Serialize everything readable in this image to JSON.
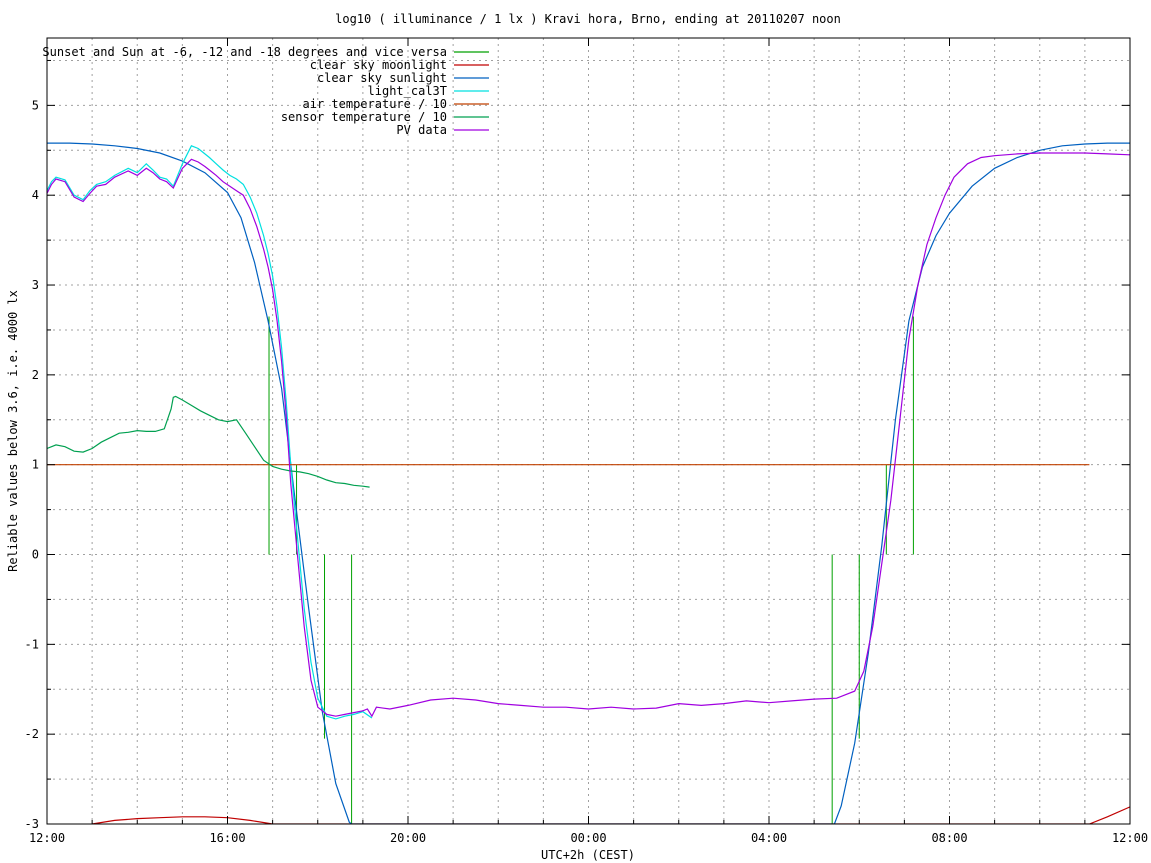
{
  "chart_data": {
    "type": "line",
    "title": "log10 ( illuminance / 1 lx ) Kravi hora, Brno, ending at 20110207 noon",
    "xlabel": "UTC+2h (CEST)",
    "ylabel": "Reliable values below 3.6, i.e. 4000 lx",
    "xlim": [
      0,
      24
    ],
    "ylim": [
      -3,
      5.75
    ],
    "grid": true,
    "legend_position": "top-left",
    "x_ticks": [
      {
        "value": 0,
        "label": "12:00"
      },
      {
        "value": 4,
        "label": "16:00"
      },
      {
        "value": 8,
        "label": "20:00"
      },
      {
        "value": 12,
        "label": "00:00"
      },
      {
        "value": 16,
        "label": "04:00"
      },
      {
        "value": 20,
        "label": "08:00"
      },
      {
        "value": 24,
        "label": "12:00"
      }
    ],
    "y_ticks": [
      {
        "value": -3,
        "label": "-3"
      },
      {
        "value": -2,
        "label": "-2"
      },
      {
        "value": -1,
        "label": "-1"
      },
      {
        "value": 0,
        "label": "0"
      },
      {
        "value": 1,
        "label": "1"
      },
      {
        "value": 2,
        "label": "2"
      },
      {
        "value": 3,
        "label": "3"
      },
      {
        "value": 4,
        "label": "4"
      },
      {
        "value": 5,
        "label": "5"
      }
    ],
    "series": [
      {
        "name": "Sunset and Sun at -6, -12 and -18 degrees and vice versa",
        "color": "#00a000",
        "kind": "impulses",
        "impulses": [
          {
            "x": 4.92,
            "y": 2.65
          },
          {
            "x": 5.53,
            "y": 1.0
          },
          {
            "x": 6.15,
            "y": -2.05
          },
          {
            "x": 6.75,
            "y": -3.0
          },
          {
            "x": 17.4,
            "y": -3.0
          },
          {
            "x": 18.0,
            "y": -2.05
          },
          {
            "x": 18.6,
            "y": 1.0
          },
          {
            "x": 19.2,
            "y": 2.65
          }
        ]
      },
      {
        "name": "clear sky moonlight",
        "color": "#c00000",
        "kind": "line",
        "x": [
          1.0,
          1.5,
          2.0,
          2.5,
          3.0,
          3.5,
          4.0,
          4.5,
          5.0,
          23.1,
          23.5,
          24.0
        ],
        "y": [
          -3.0,
          -2.96,
          -2.94,
          -2.93,
          -2.92,
          -2.92,
          -2.93,
          -2.96,
          -3.0,
          -3.0,
          -2.92,
          -2.81
        ]
      },
      {
        "name": "clear sky sunlight",
        "color": "#0060c0",
        "kind": "line",
        "x": [
          0,
          0.5,
          1.0,
          1.5,
          2.0,
          2.5,
          3.0,
          3.5,
          4.0,
          4.3,
          4.6,
          4.9,
          5.2,
          5.5,
          5.8,
          6.1,
          6.4,
          6.7,
          6.75,
          17.45,
          17.6,
          17.9,
          18.2,
          18.5,
          18.8,
          19.1,
          19.4,
          19.7,
          20.0,
          20.5,
          21.0,
          21.5,
          22.0,
          22.5,
          23.0,
          23.5,
          24.0
        ],
        "y": [
          4.58,
          4.58,
          4.57,
          4.55,
          4.52,
          4.47,
          4.38,
          4.25,
          4.03,
          3.75,
          3.25,
          2.6,
          1.85,
          0.6,
          -0.6,
          -1.75,
          -2.55,
          -2.98,
          -3.0,
          -3.0,
          -2.8,
          -2.1,
          -1.1,
          0.1,
          1.5,
          2.6,
          3.2,
          3.55,
          3.8,
          4.1,
          4.3,
          4.42,
          4.5,
          4.55,
          4.57,
          4.58,
          4.58
        ]
      },
      {
        "name": "light_cal3T",
        "color": "#00e0e0",
        "kind": "line",
        "x": [
          0,
          0.1,
          0.2,
          0.4,
          0.6,
          0.8,
          0.95,
          1.1,
          1.3,
          1.5,
          1.8,
          2.0,
          2.2,
          2.35,
          2.5,
          2.65,
          2.8,
          3.0,
          3.2,
          3.35,
          3.5,
          3.6,
          3.75,
          3.9,
          4.05,
          4.2,
          4.35,
          4.5,
          4.65,
          4.8,
          4.9,
          5.0,
          5.1,
          5.2,
          5.3,
          5.4,
          5.55,
          5.7,
          5.85,
          6.0,
          6.2,
          6.4,
          6.6,
          6.8,
          7.0,
          7.2
        ],
        "y": [
          4.05,
          4.15,
          4.2,
          4.17,
          4.0,
          3.95,
          4.05,
          4.12,
          4.15,
          4.22,
          4.3,
          4.25,
          4.35,
          4.28,
          4.2,
          4.18,
          4.1,
          4.35,
          4.55,
          4.52,
          4.46,
          4.42,
          4.35,
          4.28,
          4.22,
          4.18,
          4.12,
          3.98,
          3.8,
          3.55,
          3.35,
          3.1,
          2.75,
          2.3,
          1.7,
          1.0,
          0.2,
          -0.6,
          -1.2,
          -1.6,
          -1.8,
          -1.83,
          -1.8,
          -1.78,
          -1.75,
          -1.82
        ]
      },
      {
        "name": "air temperature / 10",
        "color": "#c04000",
        "kind": "line",
        "x": [
          0,
          23.1
        ],
        "y": [
          1.0,
          1.0
        ]
      },
      {
        "name": "sensor temperature / 10",
        "color": "#00a050",
        "kind": "line",
        "x": [
          0,
          0.2,
          0.4,
          0.6,
          0.8,
          1.0,
          1.2,
          1.4,
          1.6,
          1.8,
          2.0,
          2.2,
          2.4,
          2.6,
          2.75,
          2.8,
          2.85,
          3.0,
          3.2,
          3.4,
          3.6,
          3.8,
          4.0,
          4.2,
          4.4,
          4.6,
          4.8,
          5.0,
          5.2,
          5.4,
          5.6,
          5.8,
          6.0,
          6.2,
          6.4,
          6.6,
          6.8,
          7.0,
          7.15
        ],
        "y": [
          1.18,
          1.22,
          1.2,
          1.15,
          1.14,
          1.18,
          1.25,
          1.3,
          1.35,
          1.36,
          1.38,
          1.37,
          1.37,
          1.4,
          1.62,
          1.75,
          1.76,
          1.72,
          1.66,
          1.6,
          1.55,
          1.5,
          1.48,
          1.5,
          1.35,
          1.2,
          1.05,
          0.98,
          0.95,
          0.93,
          0.92,
          0.9,
          0.87,
          0.83,
          0.8,
          0.79,
          0.77,
          0.76,
          0.75
        ]
      },
      {
        "name": "PV data",
        "color": "#a000e0",
        "kind": "line",
        "x": [
          0,
          0.1,
          0.2,
          0.4,
          0.6,
          0.8,
          0.95,
          1.1,
          1.3,
          1.5,
          1.8,
          2.0,
          2.2,
          2.35,
          2.5,
          2.65,
          2.8,
          3.0,
          3.2,
          3.35,
          3.5,
          3.6,
          3.75,
          3.9,
          4.05,
          4.2,
          4.35,
          4.5,
          4.65,
          4.8,
          4.9,
          5.0,
          5.1,
          5.2,
          5.3,
          5.4,
          5.55,
          5.7,
          5.85,
          6.0,
          6.2,
          6.4,
          6.6,
          6.8,
          7.0,
          7.1,
          7.2,
          7.3,
          7.6,
          8.0,
          8.5,
          9.0,
          9.5,
          10.0,
          10.5,
          11.0,
          11.5,
          12.0,
          12.5,
          13.0,
          13.5,
          14.0,
          14.5,
          15.0,
          15.5,
          16.0,
          16.5,
          17.0,
          17.5,
          17.9,
          18.1,
          18.3,
          18.5,
          18.7,
          18.9,
          19.1,
          19.3,
          19.5,
          19.7,
          19.9,
          20.1,
          20.4,
          20.7,
          21.0,
          21.5,
          22.0,
          22.5,
          23.0,
          23.5,
          24.0
        ],
        "y": [
          4.02,
          4.12,
          4.18,
          4.15,
          3.98,
          3.93,
          4.02,
          4.1,
          4.12,
          4.2,
          4.27,
          4.22,
          4.3,
          4.25,
          4.18,
          4.15,
          4.08,
          4.3,
          4.4,
          4.37,
          4.32,
          4.28,
          4.22,
          4.15,
          4.1,
          4.05,
          4.0,
          3.85,
          3.65,
          3.4,
          3.2,
          2.95,
          2.6,
          2.15,
          1.55,
          0.8,
          0.0,
          -0.8,
          -1.4,
          -1.7,
          -1.78,
          -1.8,
          -1.78,
          -1.76,
          -1.74,
          -1.72,
          -1.8,
          -1.7,
          -1.72,
          -1.68,
          -1.62,
          -1.6,
          -1.62,
          -1.66,
          -1.68,
          -1.7,
          -1.7,
          -1.72,
          -1.7,
          -1.72,
          -1.71,
          -1.66,
          -1.68,
          -1.66,
          -1.63,
          -1.65,
          -1.63,
          -1.61,
          -1.6,
          -1.52,
          -1.3,
          -0.8,
          -0.1,
          0.6,
          1.5,
          2.4,
          3.0,
          3.45,
          3.75,
          4.0,
          4.2,
          4.35,
          4.42,
          4.44,
          4.46,
          4.47,
          4.47,
          4.47,
          4.46,
          4.45
        ]
      }
    ]
  }
}
